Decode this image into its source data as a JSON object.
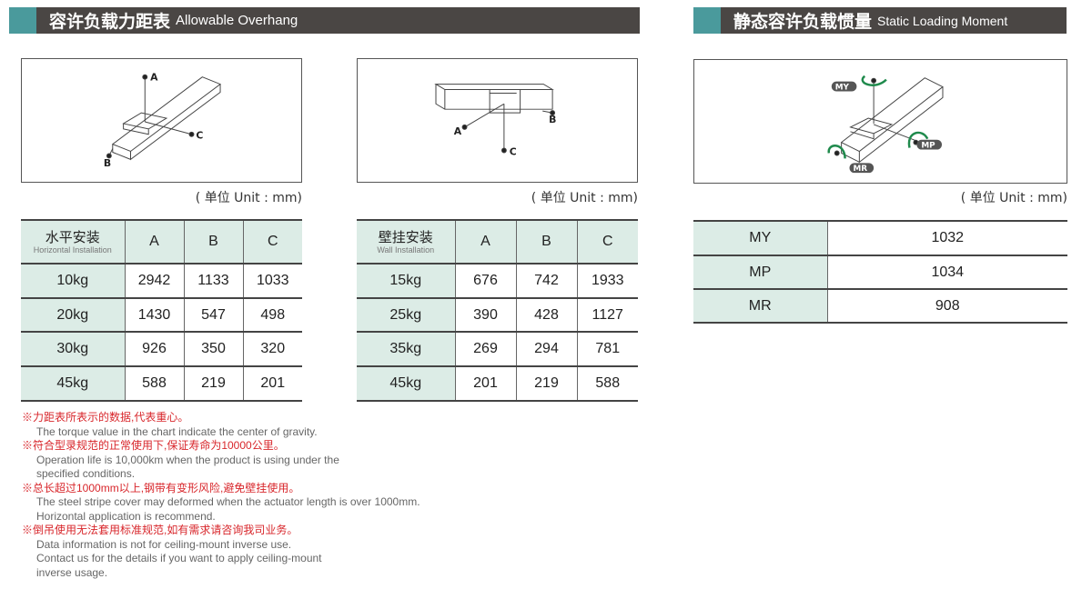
{
  "left_section": {
    "title_zh": "容许负载力距表",
    "title_en": "Allowable Overhang"
  },
  "right_section": {
    "title_zh": "静态容许负载惯量",
    "title_en": "Static Loading Moment"
  },
  "unit_label": "( 单位 Unit : mm)",
  "diagram_labels": {
    "a": "A",
    "b": "B",
    "c": "C",
    "my": "MY",
    "mp": "MP",
    "mr": "MR"
  },
  "horizontal_table": {
    "header_zh": "水平安装",
    "header_en": "Horizontal Installation",
    "columns": [
      "A",
      "B",
      "C"
    ],
    "rows": [
      {
        "load": "10kg",
        "values": [
          "2942",
          "1133",
          "1033"
        ]
      },
      {
        "load": "20kg",
        "values": [
          "1430",
          "547",
          "498"
        ]
      },
      {
        "load": "30kg",
        "values": [
          "926",
          "350",
          "320"
        ]
      },
      {
        "load": "45kg",
        "values": [
          "588",
          "219",
          "201"
        ]
      }
    ]
  },
  "wall_table": {
    "header_zh": "壁挂安装",
    "header_en": "Wall Installation",
    "columns": [
      "A",
      "B",
      "C"
    ],
    "rows": [
      {
        "load": "15kg",
        "values": [
          "676",
          "742",
          "1933"
        ]
      },
      {
        "load": "25kg",
        "values": [
          "390",
          "428",
          "1127"
        ]
      },
      {
        "load": "35kg",
        "values": [
          "269",
          "294",
          "781"
        ]
      },
      {
        "load": "45kg",
        "values": [
          "201",
          "219",
          "588"
        ]
      }
    ]
  },
  "moment_table": [
    {
      "label": "MY",
      "value": "1032"
    },
    {
      "label": "MP",
      "value": "1034"
    },
    {
      "label": "MR",
      "value": "908"
    }
  ],
  "notes": [
    {
      "zh": "※力距表所表示的数据,代表重心。",
      "en": [
        "The torque value in the chart indicate the center of gravity."
      ]
    },
    {
      "zh": "※符合型录规范的正常使用下,保证寿命为10000公里。",
      "en": [
        "Operation life is 10,000km when the product is using under the",
        "specified conditions."
      ]
    },
    {
      "zh": "※总长超过1000mm以上,钢带有变形风险,避免壁挂使用。",
      "en": [
        "The steel stripe cover may deformed when the actuator length is over 1000mm.",
        "Horizontal application is recommend."
      ]
    },
    {
      "zh": "※倒吊使用无法套用标准规范,如有需求请咨询我司业务。",
      "en": [
        "Data information is not for ceiling-mount inverse use.",
        "Contact us for the details if you want to apply ceiling-mount",
        "inverse usage."
      ]
    }
  ],
  "colors": {
    "title_bar": "#4a4644",
    "accent": "#4a9a9c",
    "header_cell": "#dcece6",
    "note_red": "#d8262b",
    "arrow_green": "#1f8a4c"
  }
}
